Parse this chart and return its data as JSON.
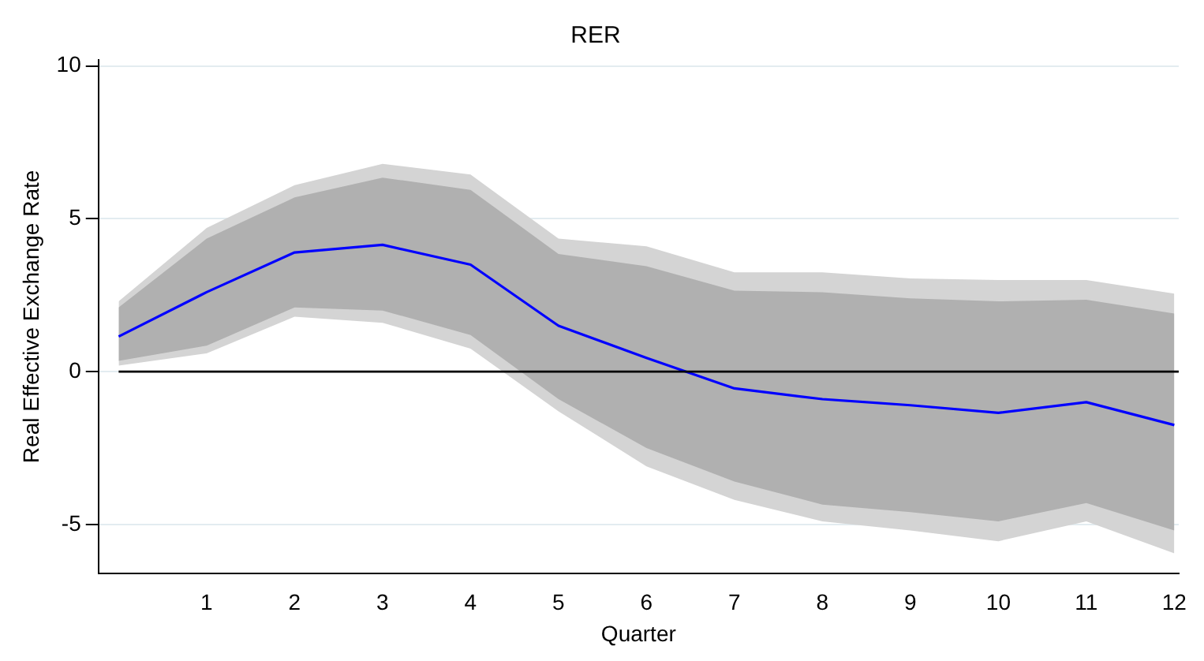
{
  "chart_data": {
    "type": "line",
    "title": "RER",
    "xlabel": "Quarter",
    "ylabel": "Real Effective Exchange Rate",
    "x": [
      0,
      1,
      2,
      3,
      4,
      5,
      6,
      7,
      8,
      9,
      10,
      11,
      12
    ],
    "series": [
      {
        "color": "#0000ff",
        "values": [
          1.15,
          2.6,
          3.9,
          4.15,
          3.5,
          1.5,
          0.45,
          -0.55,
          -0.9,
          -1.1,
          -1.35,
          -1.0,
          -1.75
        ]
      },
      {
        "color": "#b0b0b0",
        "values": [
          null,
          null,
          null,
          null,
          null,
          null,
          null,
          null,
          null,
          null,
          null,
          null,
          null
        ],
        "lower": [
          0.35,
          0.85,
          2.1,
          2.0,
          1.2,
          -0.9,
          -2.5,
          -3.6,
          -4.35,
          -4.6,
          -4.9,
          -4.3,
          -5.2
        ],
        "upper": [
          2.1,
          4.35,
          5.7,
          6.35,
          5.95,
          3.85,
          3.45,
          2.65,
          2.6,
          2.4,
          2.3,
          2.35,
          1.9
        ]
      },
      {
        "color": "#d4d4d4",
        "values": [
          null,
          null,
          null,
          null,
          null,
          null,
          null,
          null,
          null,
          null,
          null,
          null,
          null
        ],
        "lower": [
          0.2,
          0.6,
          1.8,
          1.6,
          0.75,
          -1.3,
          -3.1,
          -4.2,
          -4.9,
          -5.2,
          -5.55,
          -4.9,
          -5.95
        ],
        "upper": [
          2.3,
          4.7,
          6.1,
          6.8,
          6.45,
          4.35,
          4.1,
          3.25,
          3.25,
          3.05,
          3.0,
          3.0,
          2.55
        ]
      }
    ],
    "xlim": [
      -0.23,
      12.05
    ],
    "xticks": [
      1,
      2,
      3,
      4,
      5,
      6,
      7,
      8,
      9,
      10,
      11,
      12
    ],
    "ylim": [
      -6.6,
      10.2
    ],
    "yticks": [
      -5,
      0,
      5,
      10
    ],
    "grid": "y",
    "legend": false,
    "marker": "none",
    "line_style": "solid",
    "ref_lines": [
      {
        "axis": "y",
        "value": 0,
        "color": "#000000"
      }
    ]
  }
}
